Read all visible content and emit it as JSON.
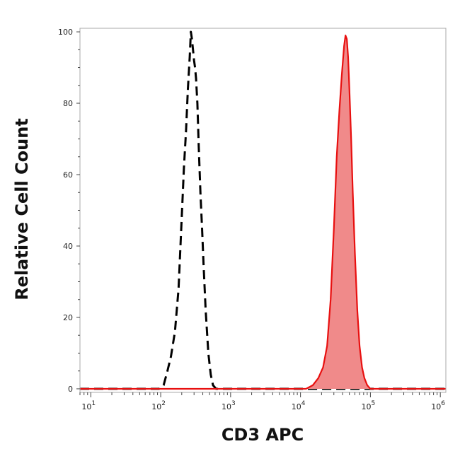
{
  "chart_data": {
    "type": "area",
    "xlabel": "CD3 APC",
    "ylabel": "Relative Cell Count",
    "x_scale": "log",
    "xlim": [
      7,
      1200000
    ],
    "ylim": [
      -1,
      101
    ],
    "x_ticks": [
      {
        "value": 10,
        "base": "10",
        "exp": "1"
      },
      {
        "value": 100,
        "base": "10",
        "exp": "2"
      },
      {
        "value": 1000,
        "base": "10",
        "exp": "3"
      },
      {
        "value": 10000,
        "base": "10",
        "exp": "4"
      },
      {
        "value": 100000,
        "base": "10",
        "exp": "5"
      },
      {
        "value": 1000000,
        "base": "10",
        "exp": "6"
      }
    ],
    "y_ticks": [
      0,
      20,
      40,
      60,
      80,
      100
    ],
    "grid": false,
    "series": [
      {
        "style": "dashed",
        "color": "#000000",
        "fill": "none",
        "x": [
          7,
          95,
          110,
          125,
          140,
          160,
          180,
          200,
          215,
          230,
          245,
          260,
          270,
          280,
          290,
          300,
          310,
          320,
          335,
          350,
          370,
          390,
          410,
          440,
          480,
          520,
          560,
          620,
          700,
          1200000
        ],
        "y": [
          0,
          0,
          1,
          5,
          9,
          16,
          28,
          48,
          62,
          72,
          84,
          93,
          100,
          98,
          95,
          92,
          90,
          87,
          80,
          68,
          55,
          45,
          35,
          22,
          10,
          4,
          1,
          0,
          0,
          0
        ]
      },
      {
        "style": "solid",
        "color": "#e81010",
        "fill": "#f08a8a",
        "x": [
          7,
          12000,
          15000,
          18000,
          21000,
          24000,
          27000,
          30000,
          33000,
          36000,
          39000,
          42000,
          44000,
          46000,
          48000,
          50000,
          53000,
          56000,
          60000,
          65000,
          70000,
          76000,
          82000,
          90000,
          100000,
          1200000
        ],
        "y": [
          0,
          0,
          1,
          3,
          6,
          12,
          25,
          45,
          65,
          78,
          88,
          96,
          99,
          98,
          93,
          84,
          70,
          55,
          38,
          22,
          12,
          6,
          3,
          1,
          0,
          0
        ]
      }
    ]
  }
}
